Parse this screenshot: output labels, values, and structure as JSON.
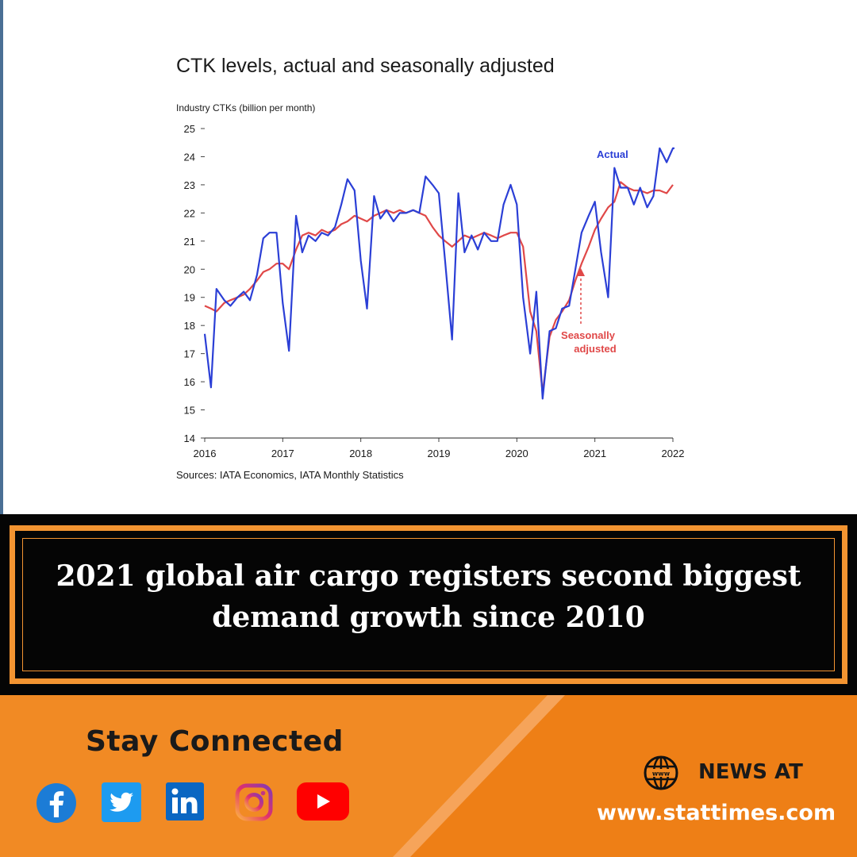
{
  "chart_data": {
    "type": "line",
    "title": "CTK levels, actual and seasonally adjusted",
    "ylabel": "Industry CTKs (billion per month)",
    "source": "Sources: IATA Economics, IATA Monthly Statistics",
    "xlim": [
      2016,
      2022
    ],
    "ylim": [
      14,
      25
    ],
    "x_ticks": [
      "2016",
      "2017",
      "2018",
      "2019",
      "2020",
      "2021",
      "2022"
    ],
    "y_ticks": [
      "14",
      "15",
      "16",
      "17",
      "18",
      "19",
      "20",
      "21",
      "22",
      "23",
      "24",
      "25"
    ],
    "annotations": {
      "actual": "Actual",
      "seasonal_line1": "Seasonally",
      "seasonal_line2": "adjusted"
    },
    "series": [
      {
        "name": "Actual",
        "color": "#2b3fd6",
        "points": [
          [
            2016.0,
            17.7
          ],
          [
            2016.08,
            15.8
          ],
          [
            2016.15,
            19.3
          ],
          [
            2016.25,
            18.9
          ],
          [
            2016.33,
            18.7
          ],
          [
            2016.42,
            19.0
          ],
          [
            2016.5,
            19.2
          ],
          [
            2016.58,
            18.9
          ],
          [
            2016.67,
            19.8
          ],
          [
            2016.75,
            21.1
          ],
          [
            2016.83,
            21.3
          ],
          [
            2016.92,
            21.3
          ],
          [
            2017.0,
            18.8
          ],
          [
            2017.08,
            17.1
          ],
          [
            2017.17,
            21.9
          ],
          [
            2017.25,
            20.6
          ],
          [
            2017.33,
            21.2
          ],
          [
            2017.42,
            21.0
          ],
          [
            2017.5,
            21.3
          ],
          [
            2017.58,
            21.2
          ],
          [
            2017.67,
            21.5
          ],
          [
            2017.75,
            22.3
          ],
          [
            2017.83,
            23.2
          ],
          [
            2017.92,
            22.8
          ],
          [
            2018.0,
            20.3
          ],
          [
            2018.08,
            18.6
          ],
          [
            2018.17,
            22.6
          ],
          [
            2018.25,
            21.8
          ],
          [
            2018.33,
            22.1
          ],
          [
            2018.42,
            21.7
          ],
          [
            2018.5,
            22.0
          ],
          [
            2018.58,
            22.0
          ],
          [
            2018.67,
            22.1
          ],
          [
            2018.75,
            22.0
          ],
          [
            2018.83,
            23.3
          ],
          [
            2018.92,
            23.0
          ],
          [
            2019.0,
            22.7
          ],
          [
            2019.08,
            20.3
          ],
          [
            2019.17,
            17.5
          ],
          [
            2019.25,
            22.7
          ],
          [
            2019.33,
            20.6
          ],
          [
            2019.42,
            21.2
          ],
          [
            2019.5,
            20.7
          ],
          [
            2019.58,
            21.3
          ],
          [
            2019.67,
            21.0
          ],
          [
            2019.75,
            21.0
          ],
          [
            2019.83,
            22.3
          ],
          [
            2019.92,
            23.0
          ],
          [
            2020.0,
            22.3
          ],
          [
            2020.08,
            19.0
          ],
          [
            2020.17,
            17.0
          ],
          [
            2020.25,
            19.2
          ],
          [
            2020.33,
            15.4
          ],
          [
            2020.42,
            17.8
          ],
          [
            2020.5,
            17.9
          ],
          [
            2020.58,
            18.6
          ],
          [
            2020.67,
            18.7
          ],
          [
            2020.75,
            20.0
          ],
          [
            2020.83,
            21.3
          ],
          [
            2020.92,
            21.9
          ],
          [
            2021.0,
            22.4
          ],
          [
            2021.08,
            20.6
          ],
          [
            2021.17,
            19.0
          ],
          [
            2021.25,
            23.6
          ],
          [
            2021.33,
            22.9
          ],
          [
            2021.42,
            22.9
          ],
          [
            2021.5,
            22.3
          ],
          [
            2021.58,
            22.9
          ],
          [
            2021.67,
            22.2
          ],
          [
            2021.75,
            22.6
          ],
          [
            2021.83,
            24.3
          ],
          [
            2021.92,
            23.8
          ],
          [
            2022.0,
            24.3
          ],
          [
            2022.02,
            24.3
          ]
        ]
      },
      {
        "name": "Seasonally adjusted",
        "color": "#e04848",
        "points": [
          [
            2016.0,
            18.7
          ],
          [
            2016.08,
            18.6
          ],
          [
            2016.15,
            18.5
          ],
          [
            2016.25,
            18.8
          ],
          [
            2016.33,
            18.9
          ],
          [
            2016.42,
            19.0
          ],
          [
            2016.5,
            19.1
          ],
          [
            2016.58,
            19.3
          ],
          [
            2016.67,
            19.6
          ],
          [
            2016.75,
            19.9
          ],
          [
            2016.83,
            20.0
          ],
          [
            2016.92,
            20.2
          ],
          [
            2017.0,
            20.2
          ],
          [
            2017.08,
            20.0
          ],
          [
            2017.17,
            20.7
          ],
          [
            2017.25,
            21.2
          ],
          [
            2017.33,
            21.3
          ],
          [
            2017.42,
            21.2
          ],
          [
            2017.5,
            21.4
          ],
          [
            2017.58,
            21.3
          ],
          [
            2017.67,
            21.4
          ],
          [
            2017.75,
            21.6
          ],
          [
            2017.83,
            21.7
          ],
          [
            2017.92,
            21.9
          ],
          [
            2018.0,
            21.8
          ],
          [
            2018.08,
            21.7
          ],
          [
            2018.17,
            21.9
          ],
          [
            2018.25,
            22.0
          ],
          [
            2018.33,
            22.1
          ],
          [
            2018.42,
            22.0
          ],
          [
            2018.5,
            22.1
          ],
          [
            2018.58,
            22.0
          ],
          [
            2018.67,
            22.1
          ],
          [
            2018.75,
            22.0
          ],
          [
            2018.83,
            21.9
          ],
          [
            2018.92,
            21.5
          ],
          [
            2019.0,
            21.2
          ],
          [
            2019.08,
            21.0
          ],
          [
            2019.17,
            20.8
          ],
          [
            2019.25,
            21.0
          ],
          [
            2019.33,
            21.2
          ],
          [
            2019.42,
            21.1
          ],
          [
            2019.5,
            21.2
          ],
          [
            2019.58,
            21.3
          ],
          [
            2019.67,
            21.2
          ],
          [
            2019.75,
            21.1
          ],
          [
            2019.83,
            21.2
          ],
          [
            2019.92,
            21.3
          ],
          [
            2020.0,
            21.3
          ],
          [
            2020.08,
            20.8
          ],
          [
            2020.17,
            18.5
          ],
          [
            2020.25,
            17.8
          ],
          [
            2020.33,
            15.6
          ],
          [
            2020.42,
            17.6
          ],
          [
            2020.5,
            18.2
          ],
          [
            2020.58,
            18.5
          ],
          [
            2020.67,
            18.9
          ],
          [
            2020.75,
            19.6
          ],
          [
            2020.83,
            20.2
          ],
          [
            2020.92,
            20.8
          ],
          [
            2021.0,
            21.4
          ],
          [
            2021.08,
            21.8
          ],
          [
            2021.17,
            22.2
          ],
          [
            2021.25,
            22.4
          ],
          [
            2021.33,
            23.1
          ],
          [
            2021.42,
            22.9
          ],
          [
            2021.5,
            22.8
          ],
          [
            2021.58,
            22.8
          ],
          [
            2021.67,
            22.7
          ],
          [
            2021.75,
            22.8
          ],
          [
            2021.83,
            22.8
          ],
          [
            2021.92,
            22.7
          ],
          [
            2022.0,
            23.0
          ]
        ]
      }
    ]
  },
  "headline": {
    "line1": "2021 global air cargo registers second biggest",
    "line2": "demand growth since 2010"
  },
  "footer": {
    "stay_connected": "Stay Connected",
    "social_icons": [
      "facebook-icon",
      "twitter-icon",
      "linkedin-icon",
      "instagram-icon",
      "youtube-icon"
    ],
    "news_at": "NEWS AT",
    "website": "www.stattimes.com"
  },
  "colors": {
    "accent_orange": "#f18a24",
    "band_black": "#050505",
    "actual_line": "#2b3fd6",
    "seasonal_line": "#e04848"
  }
}
